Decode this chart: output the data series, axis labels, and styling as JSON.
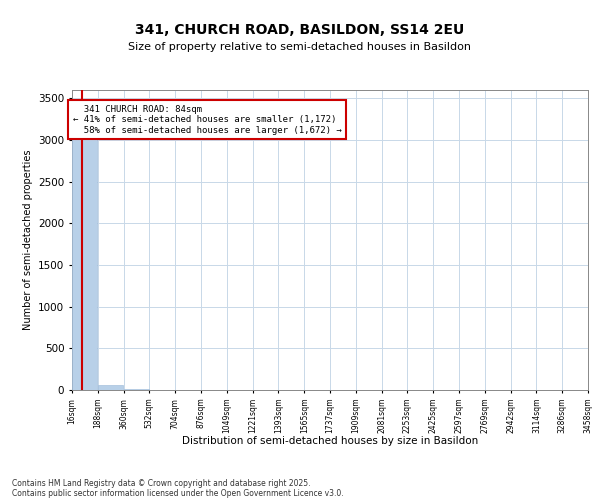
{
  "title": "341, CHURCH ROAD, BASILDON, SS14 2EU",
  "subtitle": "Size of property relative to semi-detached houses in Basildon",
  "xlabel": "Distribution of semi-detached houses by size in Basildon",
  "ylabel": "Number of semi-detached properties",
  "property_size": 84,
  "property_label": "341 CHURCH ROAD: 84sqm",
  "pct_smaller": 41,
  "pct_larger": 58,
  "count_smaller": 1172,
  "count_larger": 1672,
  "bar_color": "#b8d0e8",
  "bar_edge_color": "#9ab8d8",
  "annotation_box_color": "#cc0000",
  "vline_color": "#cc0000",
  "background_color": "#ffffff",
  "grid_color": "#c8d8e8",
  "tick_labels": [
    "16sqm",
    "188sqm",
    "360sqm",
    "532sqm",
    "704sqm",
    "876sqm",
    "1049sqm",
    "1221sqm",
    "1393sqm",
    "1565sqm",
    "1737sqm",
    "1909sqm",
    "2081sqm",
    "2253sqm",
    "2425sqm",
    "2597sqm",
    "2769sqm",
    "2942sqm",
    "3114sqm",
    "3286sqm",
    "3458sqm"
  ],
  "bin_edges": [
    16,
    188,
    360,
    532,
    704,
    876,
    1049,
    1221,
    1393,
    1565,
    1737,
    1909,
    2081,
    2253,
    2425,
    2597,
    2769,
    2942,
    3114,
    3286,
    3458
  ],
  "bar_heights": [
    3200,
    55,
    10,
    5,
    3,
    2,
    1,
    1,
    1,
    1,
    0,
    0,
    0,
    0,
    0,
    0,
    0,
    0,
    0,
    0
  ],
  "ylim": [
    0,
    3600
  ],
  "yticks": [
    0,
    500,
    1000,
    1500,
    2000,
    2500,
    3000,
    3500
  ],
  "footnote_line1": "Contains HM Land Registry data © Crown copyright and database right 2025.",
  "footnote_line2": "Contains public sector information licensed under the Open Government Licence v3.0."
}
